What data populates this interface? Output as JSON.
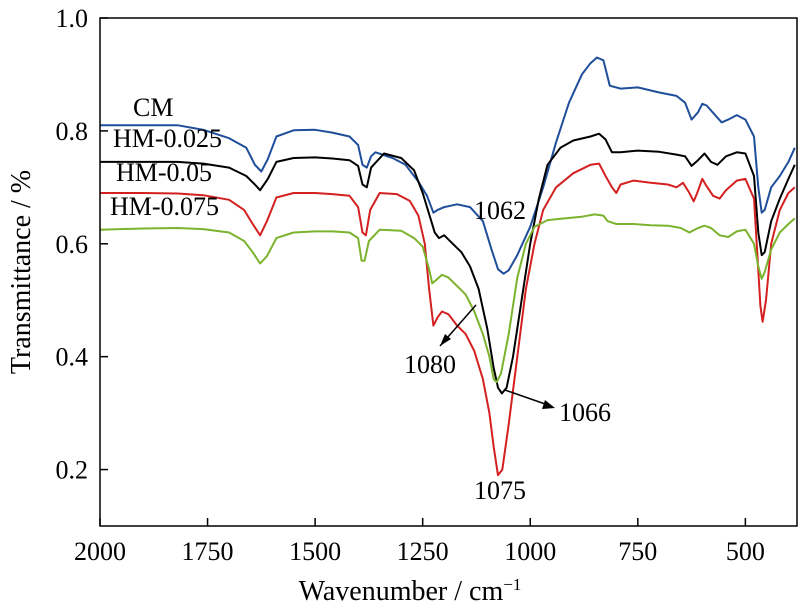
{
  "chart_data": {
    "type": "line",
    "xlabel": "Wavenumber / cm",
    "xlabel_sup": "−1",
    "ylabel": "Transmittance / %",
    "xlim": [
      2000,
      380
    ],
    "ylim": [
      0.1,
      1.0
    ],
    "x_reversed": true,
    "xticks": [
      2000,
      1750,
      1500,
      1250,
      1000,
      750,
      500
    ],
    "yticks": [
      0.2,
      0.4,
      0.6,
      0.8,
      1.0
    ],
    "ytick_labels": [
      "0.2",
      "0.4",
      "0.6",
      "0.8",
      "1.0"
    ],
    "grid": false,
    "series": [
      {
        "name": "CM",
        "color": "#1f4e9a",
        "points": [
          [
            2000,
            0.81
          ],
          [
            1900,
            0.81
          ],
          [
            1820,
            0.81
          ],
          [
            1760,
            0.802
          ],
          [
            1700,
            0.787
          ],
          [
            1660,
            0.77
          ],
          [
            1640,
            0.74
          ],
          [
            1625,
            0.728
          ],
          [
            1610,
            0.75
          ],
          [
            1590,
            0.79
          ],
          [
            1550,
            0.801
          ],
          [
            1500,
            0.802
          ],
          [
            1460,
            0.797
          ],
          [
            1420,
            0.79
          ],
          [
            1400,
            0.775
          ],
          [
            1390,
            0.74
          ],
          [
            1380,
            0.735
          ],
          [
            1370,
            0.755
          ],
          [
            1360,
            0.762
          ],
          [
            1320,
            0.752
          ],
          [
            1290,
            0.74
          ],
          [
            1260,
            0.71
          ],
          [
            1240,
            0.685
          ],
          [
            1225,
            0.655
          ],
          [
            1215,
            0.66
          ],
          [
            1200,
            0.665
          ],
          [
            1170,
            0.67
          ],
          [
            1140,
            0.665
          ],
          [
            1110,
            0.64
          ],
          [
            1090,
            0.59
          ],
          [
            1075,
            0.555
          ],
          [
            1062,
            0.547
          ],
          [
            1050,
            0.553
          ],
          [
            1030,
            0.58
          ],
          [
            1000,
            0.63
          ],
          [
            970,
            0.7
          ],
          [
            940,
            0.78
          ],
          [
            910,
            0.85
          ],
          [
            880,
            0.9
          ],
          [
            860,
            0.92
          ],
          [
            845,
            0.93
          ],
          [
            830,
            0.925
          ],
          [
            815,
            0.88
          ],
          [
            790,
            0.875
          ],
          [
            750,
            0.877
          ],
          [
            700,
            0.868
          ],
          [
            660,
            0.862
          ],
          [
            640,
            0.85
          ],
          [
            625,
            0.82
          ],
          [
            610,
            0.833
          ],
          [
            600,
            0.848
          ],
          [
            590,
            0.845
          ],
          [
            575,
            0.832
          ],
          [
            555,
            0.815
          ],
          [
            540,
            0.82
          ],
          [
            520,
            0.828
          ],
          [
            500,
            0.82
          ],
          [
            480,
            0.79
          ],
          [
            470,
            0.7
          ],
          [
            462,
            0.655
          ],
          [
            455,
            0.66
          ],
          [
            440,
            0.7
          ],
          [
            420,
            0.72
          ],
          [
            400,
            0.745
          ],
          [
            385,
            0.77
          ]
        ]
      },
      {
        "name": "HM-0.025",
        "color": "#000000",
        "points": [
          [
            2000,
            0.745
          ],
          [
            1900,
            0.745
          ],
          [
            1820,
            0.745
          ],
          [
            1760,
            0.742
          ],
          [
            1700,
            0.735
          ],
          [
            1660,
            0.72
          ],
          [
            1640,
            0.705
          ],
          [
            1628,
            0.695
          ],
          [
            1610,
            0.715
          ],
          [
            1590,
            0.745
          ],
          [
            1550,
            0.752
          ],
          [
            1500,
            0.753
          ],
          [
            1460,
            0.751
          ],
          [
            1420,
            0.748
          ],
          [
            1400,
            0.738
          ],
          [
            1390,
            0.705
          ],
          [
            1380,
            0.7
          ],
          [
            1370,
            0.735
          ],
          [
            1340,
            0.76
          ],
          [
            1300,
            0.752
          ],
          [
            1270,
            0.73
          ],
          [
            1250,
            0.69
          ],
          [
            1230,
            0.64
          ],
          [
            1222,
            0.62
          ],
          [
            1212,
            0.61
          ],
          [
            1200,
            0.615
          ],
          [
            1180,
            0.6
          ],
          [
            1160,
            0.585
          ],
          [
            1140,
            0.56
          ],
          [
            1120,
            0.52
          ],
          [
            1100,
            0.45
          ],
          [
            1085,
            0.38
          ],
          [
            1075,
            0.345
          ],
          [
            1066,
            0.335
          ],
          [
            1055,
            0.345
          ],
          [
            1040,
            0.4
          ],
          [
            1020,
            0.5
          ],
          [
            1000,
            0.6
          ],
          [
            980,
            0.68
          ],
          [
            960,
            0.74
          ],
          [
            930,
            0.77
          ],
          [
            900,
            0.783
          ],
          [
            860,
            0.79
          ],
          [
            840,
            0.795
          ],
          [
            825,
            0.785
          ],
          [
            810,
            0.762
          ],
          [
            790,
            0.762
          ],
          [
            750,
            0.765
          ],
          [
            700,
            0.763
          ],
          [
            660,
            0.758
          ],
          [
            640,
            0.755
          ],
          [
            625,
            0.738
          ],
          [
            610,
            0.748
          ],
          [
            595,
            0.76
          ],
          [
            580,
            0.745
          ],
          [
            565,
            0.74
          ],
          [
            545,
            0.755
          ],
          [
            520,
            0.762
          ],
          [
            500,
            0.76
          ],
          [
            480,
            0.72
          ],
          [
            470,
            0.62
          ],
          [
            462,
            0.58
          ],
          [
            455,
            0.585
          ],
          [
            440,
            0.64
          ],
          [
            420,
            0.68
          ],
          [
            400,
            0.715
          ],
          [
            385,
            0.74
          ]
        ]
      },
      {
        "name": "HM-0.05",
        "color": "#d42020",
        "points": [
          [
            2000,
            0.69
          ],
          [
            1900,
            0.69
          ],
          [
            1820,
            0.689
          ],
          [
            1760,
            0.686
          ],
          [
            1700,
            0.678
          ],
          [
            1665,
            0.66
          ],
          [
            1645,
            0.635
          ],
          [
            1628,
            0.615
          ],
          [
            1612,
            0.64
          ],
          [
            1590,
            0.682
          ],
          [
            1550,
            0.69
          ],
          [
            1500,
            0.69
          ],
          [
            1460,
            0.688
          ],
          [
            1420,
            0.685
          ],
          [
            1400,
            0.665
          ],
          [
            1390,
            0.62
          ],
          [
            1382,
            0.615
          ],
          [
            1372,
            0.66
          ],
          [
            1350,
            0.69
          ],
          [
            1310,
            0.688
          ],
          [
            1280,
            0.676
          ],
          [
            1260,
            0.65
          ],
          [
            1245,
            0.6
          ],
          [
            1235,
            0.52
          ],
          [
            1225,
            0.455
          ],
          [
            1215,
            0.47
          ],
          [
            1205,
            0.48
          ],
          [
            1190,
            0.475
          ],
          [
            1170,
            0.455
          ],
          [
            1150,
            0.44
          ],
          [
            1130,
            0.41
          ],
          [
            1110,
            0.36
          ],
          [
            1095,
            0.3
          ],
          [
            1085,
            0.24
          ],
          [
            1075,
            0.19
          ],
          [
            1065,
            0.2
          ],
          [
            1050,
            0.28
          ],
          [
            1030,
            0.4
          ],
          [
            1010,
            0.52
          ],
          [
            990,
            0.6
          ],
          [
            970,
            0.66
          ],
          [
            940,
            0.7
          ],
          [
            900,
            0.725
          ],
          [
            860,
            0.74
          ],
          [
            840,
            0.742
          ],
          [
            825,
            0.72
          ],
          [
            810,
            0.7
          ],
          [
            800,
            0.69
          ],
          [
            790,
            0.705
          ],
          [
            760,
            0.712
          ],
          [
            720,
            0.708
          ],
          [
            680,
            0.705
          ],
          [
            660,
            0.7
          ],
          [
            645,
            0.708
          ],
          [
            630,
            0.69
          ],
          [
            620,
            0.675
          ],
          [
            612,
            0.69
          ],
          [
            600,
            0.715
          ],
          [
            590,
            0.702
          ],
          [
            575,
            0.685
          ],
          [
            560,
            0.68
          ],
          [
            545,
            0.695
          ],
          [
            520,
            0.712
          ],
          [
            500,
            0.715
          ],
          [
            480,
            0.68
          ],
          [
            472,
            0.58
          ],
          [
            465,
            0.49
          ],
          [
            460,
            0.462
          ],
          [
            452,
            0.5
          ],
          [
            440,
            0.6
          ],
          [
            420,
            0.66
          ],
          [
            400,
            0.69
          ],
          [
            385,
            0.7
          ]
        ]
      },
      {
        "name": "HM-0.075",
        "color": "#7bb32e",
        "points": [
          [
            2000,
            0.625
          ],
          [
            1900,
            0.627
          ],
          [
            1820,
            0.628
          ],
          [
            1760,
            0.626
          ],
          [
            1700,
            0.62
          ],
          [
            1665,
            0.605
          ],
          [
            1645,
            0.585
          ],
          [
            1628,
            0.565
          ],
          [
            1612,
            0.578
          ],
          [
            1590,
            0.61
          ],
          [
            1550,
            0.62
          ],
          [
            1500,
            0.622
          ],
          [
            1460,
            0.622
          ],
          [
            1420,
            0.62
          ],
          [
            1400,
            0.61
          ],
          [
            1392,
            0.57
          ],
          [
            1385,
            0.57
          ],
          [
            1375,
            0.605
          ],
          [
            1350,
            0.625
          ],
          [
            1300,
            0.623
          ],
          [
            1270,
            0.61
          ],
          [
            1250,
            0.595
          ],
          [
            1235,
            0.555
          ],
          [
            1228,
            0.53
          ],
          [
            1220,
            0.535
          ],
          [
            1205,
            0.545
          ],
          [
            1190,
            0.54
          ],
          [
            1170,
            0.525
          ],
          [
            1150,
            0.51
          ],
          [
            1130,
            0.48
          ],
          [
            1110,
            0.44
          ],
          [
            1095,
            0.4
          ],
          [
            1085,
            0.36
          ],
          [
            1078,
            0.355
          ],
          [
            1068,
            0.37
          ],
          [
            1050,
            0.44
          ],
          [
            1030,
            0.54
          ],
          [
            1010,
            0.6
          ],
          [
            990,
            0.63
          ],
          [
            960,
            0.642
          ],
          [
            920,
            0.645
          ],
          [
            880,
            0.648
          ],
          [
            850,
            0.652
          ],
          [
            830,
            0.65
          ],
          [
            820,
            0.64
          ],
          [
            800,
            0.635
          ],
          [
            760,
            0.635
          ],
          [
            720,
            0.633
          ],
          [
            680,
            0.632
          ],
          [
            650,
            0.628
          ],
          [
            630,
            0.62
          ],
          [
            610,
            0.628
          ],
          [
            595,
            0.632
          ],
          [
            580,
            0.628
          ],
          [
            560,
            0.615
          ],
          [
            540,
            0.612
          ],
          [
            520,
            0.622
          ],
          [
            500,
            0.625
          ],
          [
            480,
            0.6
          ],
          [
            470,
            0.56
          ],
          [
            462,
            0.538
          ],
          [
            455,
            0.55
          ],
          [
            440,
            0.59
          ],
          [
            420,
            0.62
          ],
          [
            400,
            0.635
          ],
          [
            385,
            0.645
          ]
        ]
      }
    ],
    "legend": [
      "CM",
      "HM-0.025",
      "HM-0.05",
      "HM-0.075"
    ],
    "legend_placement": "top-left, labels stacked above each curve",
    "annotations": [
      {
        "text": "1062",
        "x": 1062,
        "y": 0.547
      },
      {
        "text": "1080",
        "x": 1080,
        "y": 0.345
      },
      {
        "text": "1066",
        "x": 1066,
        "y": 0.335
      },
      {
        "text": "1075",
        "x": 1075,
        "y": 0.19
      }
    ]
  }
}
